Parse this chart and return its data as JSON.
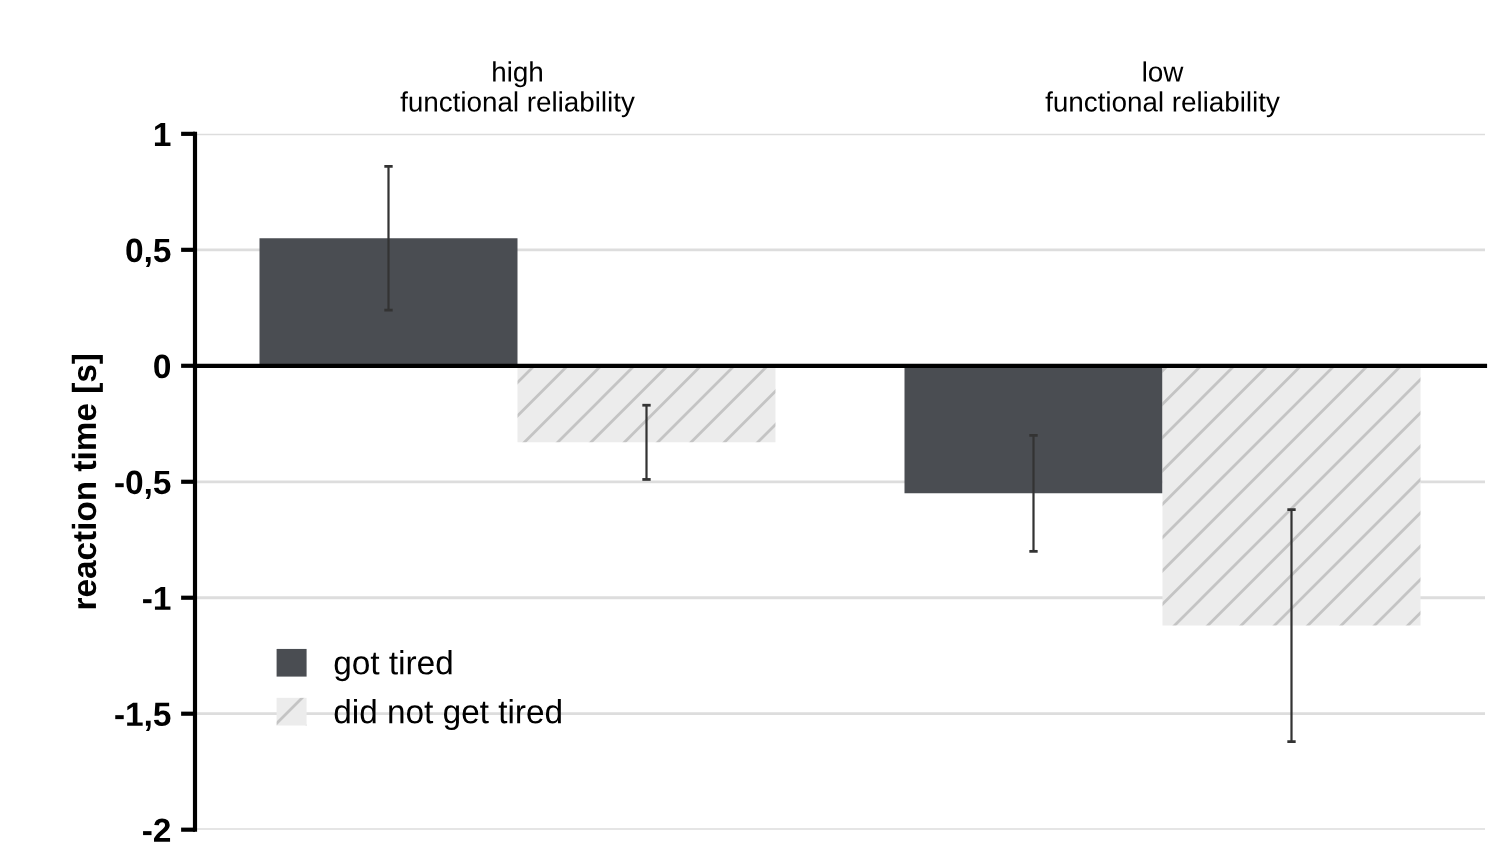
{
  "chart_data": {
    "type": "bar",
    "ylabel": "reaction time [s]",
    "categories": [
      "high\nfunctional reliability",
      "low\nfunctional reliability"
    ],
    "series": [
      {
        "name": "got tired",
        "color": "#4a4d52",
        "values": [
          0.55,
          -0.55
        ],
        "errors": [
          0.31,
          0.25
        ]
      },
      {
        "name": "did not get tired",
        "color": "#ececec",
        "values": [
          -0.33,
          -1.12
        ],
        "errors": [
          0.16,
          0.5
        ]
      }
    ],
    "ylim": [
      -2,
      1
    ],
    "yticks": [
      -2,
      {
        "value": -1.5,
        "label": "-1,5"
      },
      -1,
      {
        "value": -0.5,
        "label": "-0,5"
      },
      0,
      {
        "value": 0.5,
        "label": "0,5"
      },
      1
    ],
    "grid": "y",
    "legend": "bottom left"
  }
}
